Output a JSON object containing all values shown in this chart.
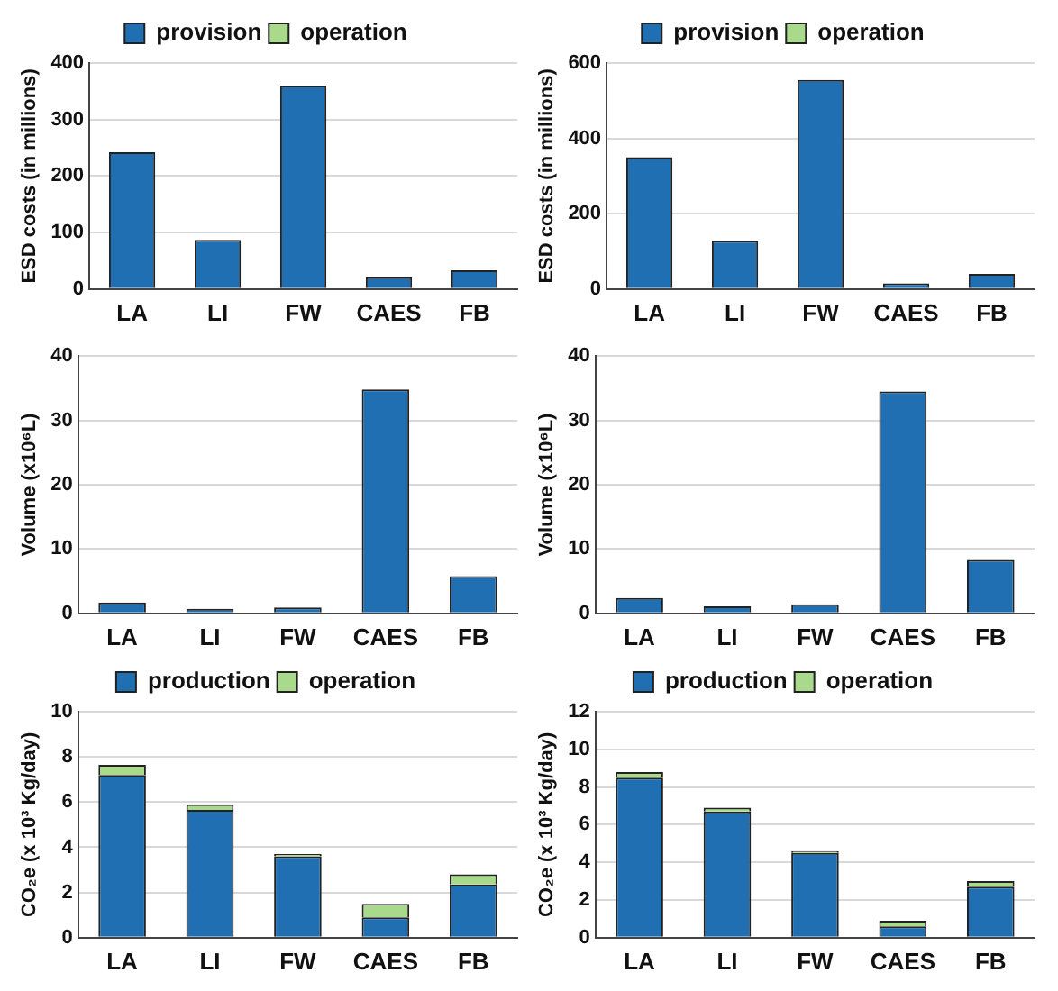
{
  "chart_data": [
    {
      "type": "bar",
      "ylabel": "ESD costs (in millions)",
      "categories": [
        "LA",
        "LI",
        "FW",
        "CAES",
        "FB"
      ],
      "stacked": true,
      "legend": "top",
      "grid": "y",
      "ylim": [
        0,
        400
      ],
      "yticks": [
        0,
        100,
        200,
        300,
        400
      ],
      "series": [
        {
          "name": "provision",
          "color": "#1f6fb2",
          "values": [
            242,
            87,
            360,
            21,
            33
          ]
        },
        {
          "name": "operation",
          "color": "#a9d98b",
          "values": [
            null,
            null,
            null,
            null,
            null
          ]
        }
      ]
    },
    {
      "type": "bar",
      "ylabel": "ESD costs (in millions)",
      "categories": [
        "LA",
        "LI",
        "FW",
        "CAES",
        "FB"
      ],
      "stacked": true,
      "legend": "top",
      "grid": "y",
      "ylim": [
        0,
        600
      ],
      "yticks": [
        0,
        200,
        400,
        600
      ],
      "series": [
        {
          "name": "provision",
          "color": "#1f6fb2",
          "values": [
            350,
            128,
            555,
            15,
            40
          ]
        },
        {
          "name": "operation",
          "color": "#a9d98b",
          "values": [
            null,
            null,
            null,
            null,
            null
          ]
        }
      ]
    },
    {
      "type": "bar",
      "ylabel": "Volume (x10⁶L)",
      "categories": [
        "LA",
        "LI",
        "FW",
        "CAES",
        "FB"
      ],
      "grid": "y",
      "ylim": [
        0,
        40
      ],
      "yticks": [
        0,
        10,
        20,
        30,
        40
      ],
      "series": [
        {
          "color": "#1f6fb2",
          "values": [
            1.7,
            0.7,
            0.9,
            34.8,
            5.8
          ]
        }
      ]
    },
    {
      "type": "bar",
      "ylabel": "Volume (x10⁶L)",
      "categories": [
        "LA",
        "LI",
        "FW",
        "CAES",
        "FB"
      ],
      "grid": "y",
      "ylim": [
        0,
        40
      ],
      "yticks": [
        0,
        10,
        20,
        30,
        40
      ],
      "series": [
        {
          "color": "#1f6fb2",
          "values": [
            2.4,
            1.1,
            1.4,
            34.5,
            8.3
          ]
        }
      ]
    },
    {
      "type": "bar",
      "ylabel": "CO₂e (x 10³ Kg/day)",
      "categories": [
        "LA",
        "LI",
        "FW",
        "CAES",
        "FB"
      ],
      "stacked": true,
      "legend": "top",
      "grid": "y",
      "ylim": [
        0,
        10
      ],
      "yticks": [
        0,
        2,
        4,
        6,
        8,
        10
      ],
      "series": [
        {
          "name": "production",
          "color": "#1f6fb2",
          "values": [
            7.2,
            5.65,
            3.6,
            0.9,
            2.35
          ]
        },
        {
          "name": "operation",
          "color": "#a9d98b",
          "values": [
            0.45,
            0.25,
            0.1,
            0.6,
            0.45
          ]
        }
      ]
    },
    {
      "type": "bar",
      "ylabel": "CO₂e (x 10³ Kg/day)",
      "categories": [
        "LA",
        "LI",
        "FW",
        "CAES",
        "FB"
      ],
      "stacked": true,
      "legend": "top",
      "grid": "y",
      "ylim": [
        0,
        12
      ],
      "yticks": [
        0,
        2,
        4,
        6,
        8,
        10,
        12
      ],
      "series": [
        {
          "name": "production",
          "color": "#1f6fb2",
          "values": [
            8.5,
            6.7,
            4.5,
            0.6,
            2.7
          ]
        },
        {
          "name": "operation",
          "color": "#a9d98b",
          "values": [
            0.3,
            0.2,
            0.1,
            0.3,
            0.3
          ]
        }
      ]
    }
  ]
}
